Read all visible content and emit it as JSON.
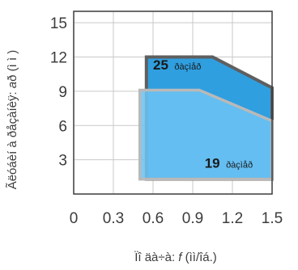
{
  "chart_data": {
    "type": "area",
    "title": "",
    "xlabel_prefix": "Ïî   äà÷à: ",
    "xlabel_var": "f",
    "xlabel_suffix": " (ìì/îá.)",
    "ylabel_prefix": "Ãëóáèí à ðåçàíèÿ: ",
    "ylabel_var": "a",
    "ylabel_suffix": "ð (ì ì )",
    "xlim": [
      0,
      1.5
    ],
    "ylim": [
      0,
      16
    ],
    "xticks": [
      "0",
      "0.3",
      "0.6",
      "0.9",
      "1.2",
      "1.5"
    ],
    "yticks": [
      "3",
      "6",
      "9",
      "12",
      "15"
    ],
    "grid": true,
    "series": [
      {
        "label_number": "25",
        "label_unit": "ðàçìåð",
        "color": "#2f9fe0",
        "border_color": "#5f5f5f",
        "points": [
          [
            0.55,
            1.3
          ],
          [
            0.55,
            12
          ],
          [
            1.05,
            12
          ],
          [
            1.5,
            9.3
          ],
          [
            1.5,
            1.3
          ]
        ]
      },
      {
        "label_number": "19",
        "label_unit": "ðàçìåð",
        "color": "#6cc3f2",
        "border_color": "#b9b9b9",
        "points": [
          [
            0.5,
            1.3
          ],
          [
            0.5,
            9.1
          ],
          [
            0.95,
            9.1
          ],
          [
            1.5,
            6.4
          ],
          [
            1.5,
            1.3
          ]
        ]
      }
    ]
  }
}
